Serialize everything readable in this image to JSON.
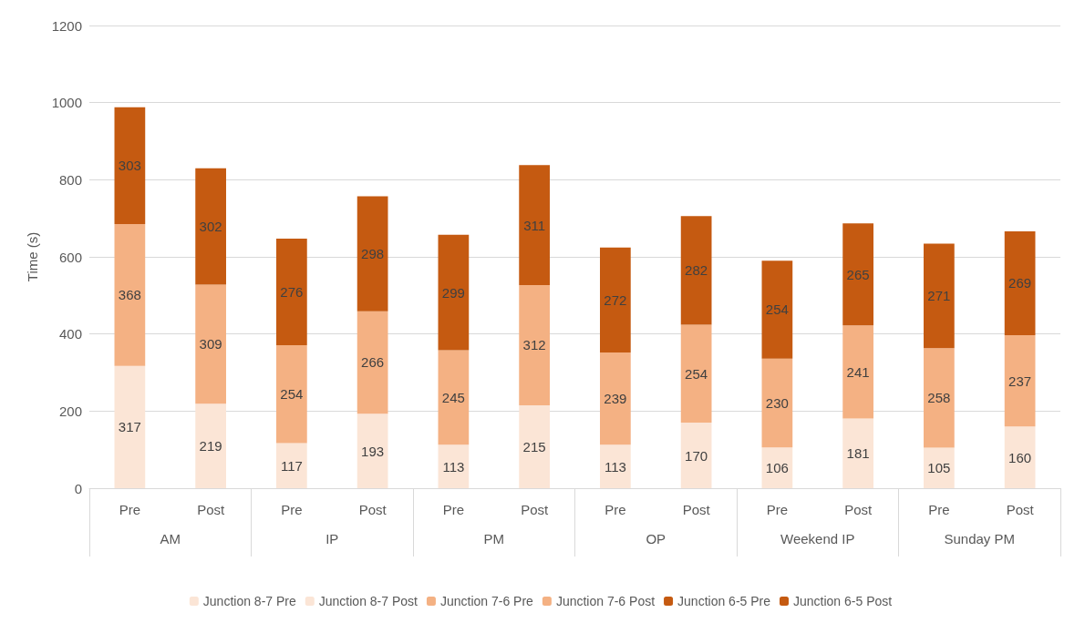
{
  "chart_data": {
    "type": "bar",
    "stacked": true,
    "ylabel": "Time (s)",
    "categories": [
      "Pre",
      "Post",
      "Pre",
      "Post",
      "Pre",
      "Post",
      "Pre",
      "Post",
      "Pre",
      "Post",
      "Pre",
      "Post"
    ],
    "annotations": [
      "AM",
      "IP",
      "PM",
      "OP",
      "Weekend IP",
      "Sunday PM"
    ],
    "series": [
      {
        "name": "Junction 8-7 Pre",
        "color": "#fbe5d6",
        "values": [
          317,
          null,
          117,
          null,
          113,
          null,
          113,
          null,
          106,
          null,
          105,
          null
        ]
      },
      {
        "name": "Junction 8-7 Post",
        "color": "#fbe5d6",
        "values": [
          null,
          219,
          null,
          193,
          null,
          215,
          null,
          170,
          null,
          181,
          null,
          160
        ]
      },
      {
        "name": "Junction 7-6 Pre",
        "color": "#f4b183",
        "values": [
          368,
          null,
          254,
          null,
          245,
          null,
          239,
          null,
          230,
          null,
          258,
          null
        ]
      },
      {
        "name": "Junction 7-6 Post",
        "color": "#f4b183",
        "values": [
          null,
          309,
          null,
          266,
          null,
          312,
          null,
          254,
          null,
          241,
          null,
          237
        ]
      },
      {
        "name": "Junction 6-5 Pre",
        "color": "#c55a11",
        "values": [
          303,
          null,
          276,
          null,
          299,
          null,
          272,
          null,
          254,
          null,
          271,
          null
        ]
      },
      {
        "name": "Junction 6-5 Post",
        "color": "#c55a11",
        "values": [
          null,
          302,
          null,
          298,
          null,
          311,
          null,
          282,
          null,
          265,
          null,
          269
        ]
      }
    ],
    "ylim": [
      0,
      1200
    ],
    "yticks": [
      0,
      200,
      400,
      600,
      800,
      1000,
      1200
    ],
    "grid": "y",
    "legend": "bottom",
    "data_labels": true
  }
}
